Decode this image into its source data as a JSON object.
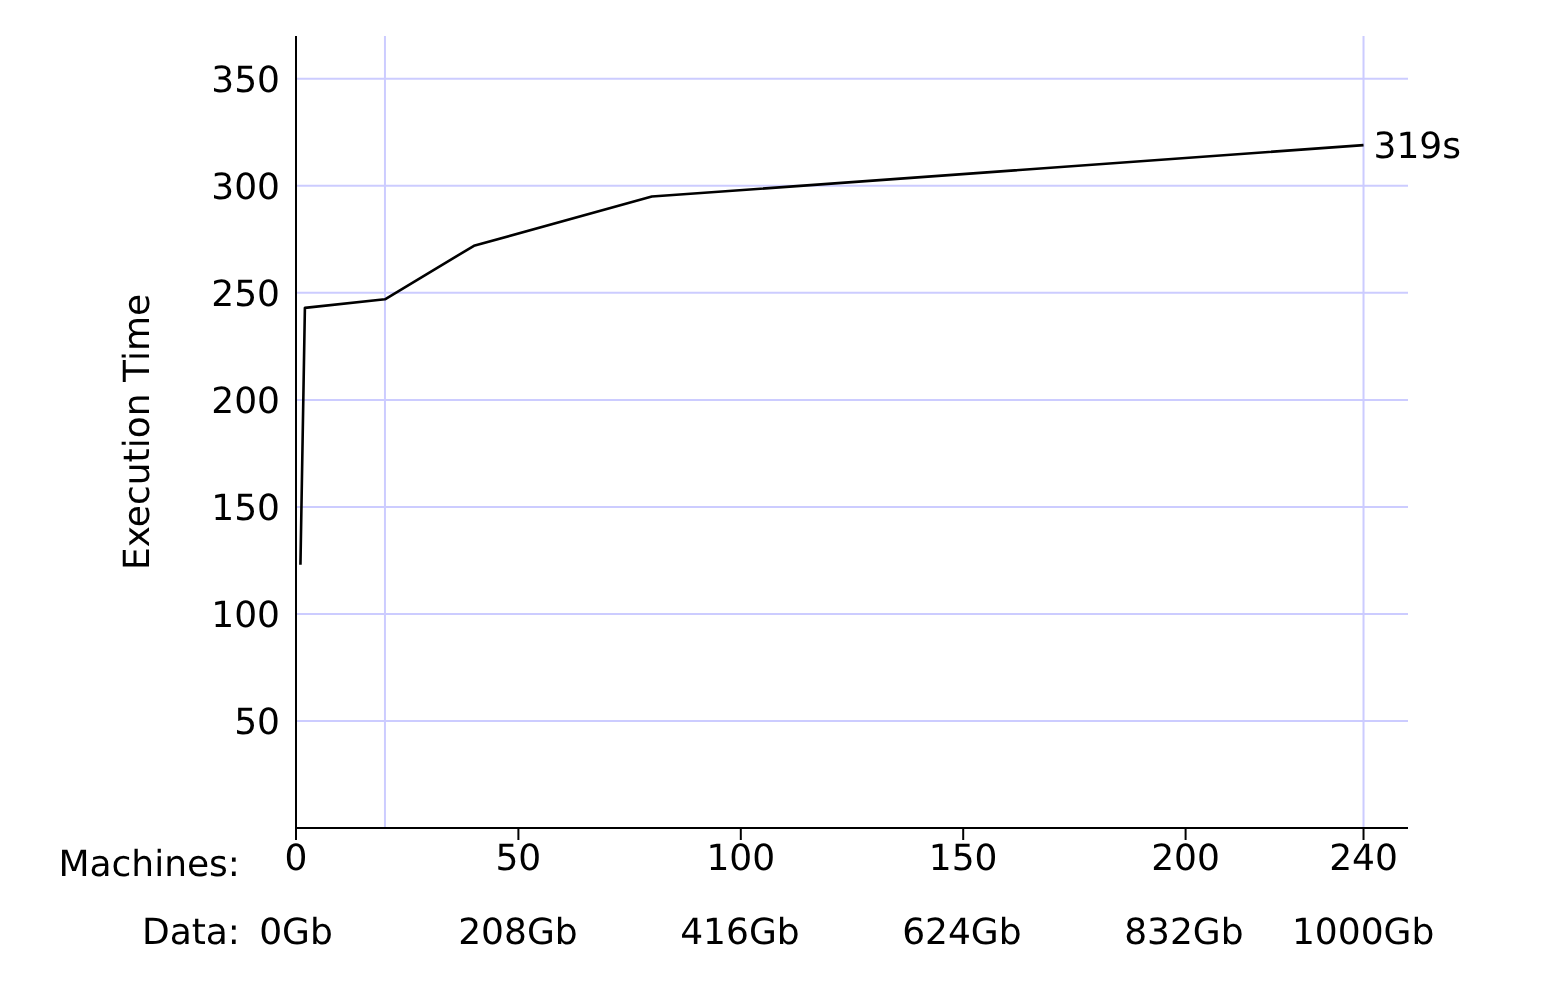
{
  "chart_data": {
    "type": "line",
    "xlabel": "Machines:",
    "x2label": "Data:",
    "ylabel": "Execution Time",
    "x": [
      1,
      2,
      20,
      40,
      80,
      240
    ],
    "series": [
      {
        "color": "#000000",
        "values": [
          123,
          243,
          247,
          272,
          295,
          319
        ]
      }
    ],
    "xlim": [
      0,
      250
    ],
    "xticks": [
      0,
      50,
      100,
      150,
      200,
      240
    ],
    "x2lim": [
      0,
      1042
    ],
    "x2ticks": [
      {
        "value": 0,
        "label": "0Gb"
      },
      {
        "value": 208,
        "label": "208Gb"
      },
      {
        "value": 416,
        "label": "416Gb"
      },
      {
        "value": 624,
        "label": "624Gb"
      },
      {
        "value": 832,
        "label": "832Gb"
      },
      {
        "value": 1000,
        "label": "1000Gb"
      }
    ],
    "ylim": [
      0,
      370
    ],
    "yticks": [
      50,
      100,
      150,
      200,
      250,
      300,
      350
    ],
    "grid": "y",
    "ref_lines": [
      {
        "axis": "x",
        "value": 20,
        "color": "#ccccff"
      },
      {
        "axis": "x",
        "value": 240,
        "color": "#ccccff"
      }
    ],
    "annotations": [
      {
        "text": "319s",
        "x": 240,
        "y": 319
      }
    ],
    "marker": "none",
    "line_style": "solid"
  }
}
